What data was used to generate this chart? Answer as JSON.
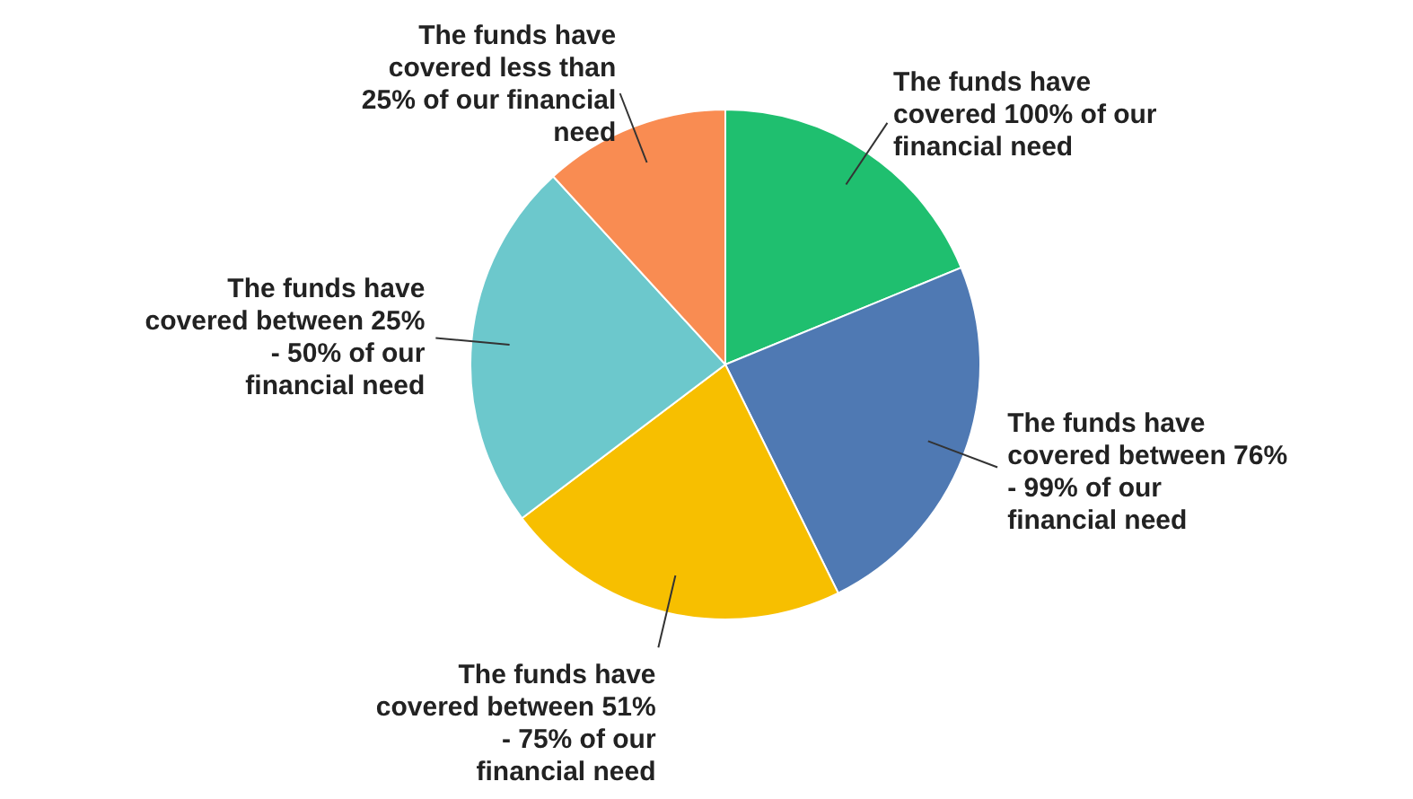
{
  "chart_data": {
    "type": "pie",
    "categories": [
      "The funds have covered 100% of our financial need",
      "The funds have covered between 76% - 99% of our financial need",
      "The funds have covered between 51% - 75% of our financial need",
      "The funds have covered between 25% - 50% of our financial need",
      "The funds have covered less than 25% of our financial need"
    ],
    "values": [
      18.8,
      23.9,
      22,
      23.5,
      11.8
    ],
    "colors": [
      "#1fbf6f",
      "#4f79b3",
      "#f7bf00",
      "#6cc8cc",
      "#f98c52"
    ]
  }
}
